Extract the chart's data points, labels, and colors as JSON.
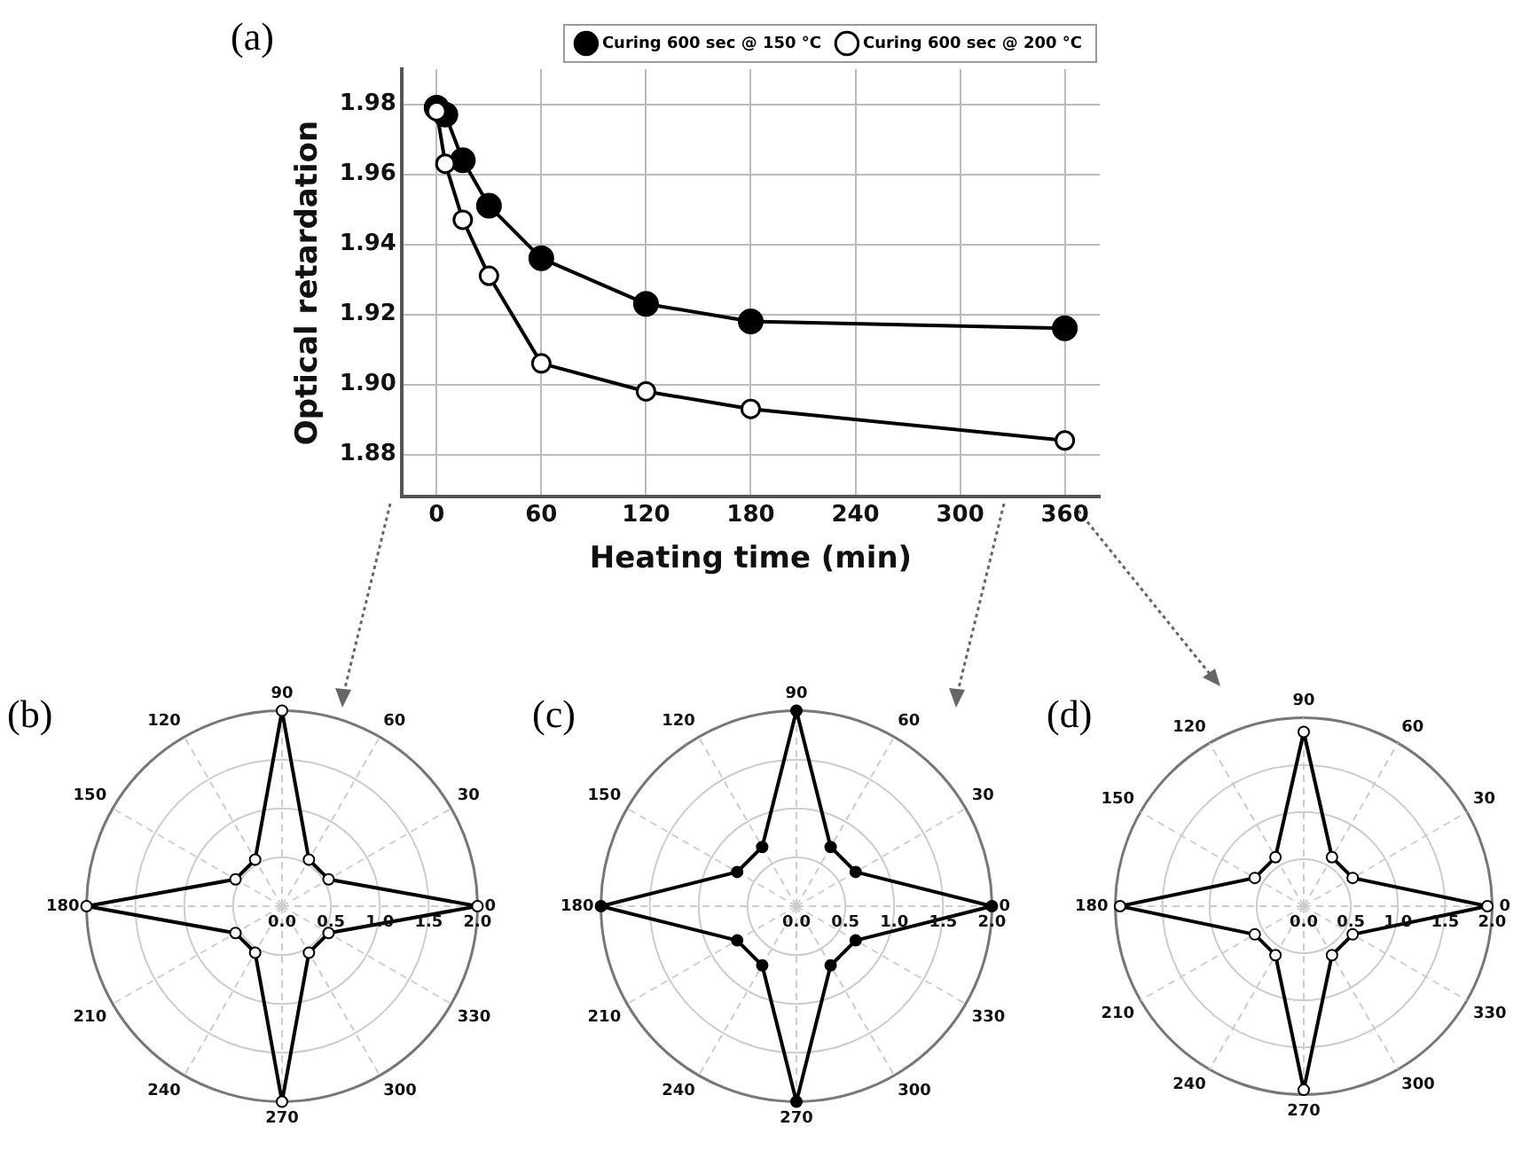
{
  "chart_data": [
    {
      "type": "line",
      "xlabel": "Heating time (min)",
      "ylabel": "Optical retardation",
      "annotations": [
        "(a)"
      ],
      "x": [
        0,
        5,
        15,
        30,
        60,
        120,
        180,
        360
      ],
      "series": [
        {
          "name": "Curing 600 sec @ 150 °C",
          "color": "#000000",
          "marker": "circle",
          "values": [
            1.979,
            1.977,
            1.964,
            1.951,
            1.936,
            1.923,
            1.918,
            1.916
          ]
        },
        {
          "name": "Curing 600 sec @ 200 °C",
          "color": "#000000",
          "marker": "circle-open",
          "values": [
            1.978,
            1.963,
            1.947,
            1.931,
            1.906,
            1.898,
            1.893,
            1.884
          ]
        }
      ],
      "xlim": [
        -20,
        380
      ],
      "xticks": [
        0,
        60,
        120,
        180,
        240,
        300,
        360
      ],
      "ylim": [
        1.868,
        1.99
      ],
      "yticks": [
        {
          "value": 1.88,
          "label": "1.88"
        },
        {
          "value": 1.9,
          "label": "1.90"
        },
        {
          "value": 1.92,
          "label": "1.92"
        },
        {
          "value": 1.94,
          "label": "1.94"
        },
        {
          "value": 1.96,
          "label": "1.96"
        },
        {
          "value": 1.98,
          "label": "1.98"
        }
      ],
      "grid": true,
      "legend": "top right",
      "line_style": "solid"
    },
    {
      "type": "radar",
      "annotations": [
        "(b)"
      ],
      "categories": [
        "90",
        "60",
        "30",
        "0",
        "330",
        "300",
        "270",
        "240",
        "210",
        "180",
        "150",
        "120"
      ],
      "series": [
        {
          "color": "#000000",
          "marker": "circle-open",
          "values": [
            2.0,
            0.55,
            0.55,
            2.0,
            0.55,
            0.55,
            2.0,
            0.55,
            0.55,
            2.0,
            0.55,
            0.55
          ]
        }
      ],
      "ylim": [
        0,
        2
      ],
      "yticks": [
        {
          "value": 0,
          "label": "0.0"
        },
        {
          "value": 0.5,
          "label": "0.5"
        },
        {
          "value": 1,
          "label": "1.0"
        },
        {
          "value": 1.5,
          "label": "1.5"
        },
        {
          "value": 2,
          "label": "2.0"
        }
      ],
      "grid": true
    },
    {
      "type": "radar",
      "annotations": [
        "(c)"
      ],
      "categories": [
        "90",
        "60",
        "30",
        "0",
        "330",
        "300",
        "270",
        "240",
        "210",
        "180",
        "150",
        "120"
      ],
      "series": [
        {
          "color": "#000000",
          "marker": "circle",
          "values": [
            2.0,
            0.7,
            0.7,
            2.0,
            0.7,
            0.7,
            2.0,
            0.7,
            0.7,
            2.0,
            0.7,
            0.7
          ]
        }
      ],
      "ylim": [
        0,
        2
      ],
      "yticks": [
        {
          "value": 0,
          "label": "0.0"
        },
        {
          "value": 0.5,
          "label": "0.5"
        },
        {
          "value": 1,
          "label": "1.0"
        },
        {
          "value": 1.5,
          "label": "1.5"
        },
        {
          "value": 2,
          "label": "2.0"
        }
      ],
      "grid": true
    },
    {
      "type": "radar",
      "annotations": [
        "(d)"
      ],
      "categories": [
        "90",
        "60",
        "30",
        "0",
        "330",
        "300",
        "270",
        "240",
        "210",
        "180",
        "150",
        "120"
      ],
      "series": [
        {
          "color": "#000000",
          "marker": "circle-open",
          "values": [
            1.85,
            0.6,
            0.6,
            1.95,
            0.6,
            0.6,
            1.95,
            0.6,
            0.6,
            1.95,
            0.6,
            0.6
          ]
        }
      ],
      "ylim": [
        0,
        2
      ],
      "yticks": [
        {
          "value": 0,
          "label": "0.0"
        },
        {
          "value": 0.5,
          "label": "0.5"
        },
        {
          "value": 1,
          "label": "1.0"
        },
        {
          "value": 1.5,
          "label": "1.5"
        },
        {
          "value": 2,
          "label": "2.0"
        }
      ],
      "grid": true
    }
  ]
}
